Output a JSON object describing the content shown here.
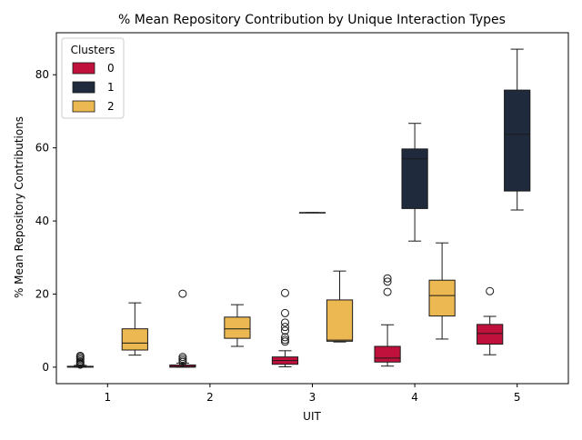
{
  "chart_data": {
    "type": "box",
    "title": "% Mean Repository Contribution by Unique Interaction Types",
    "xlabel": "UIT",
    "ylabel": "% Mean Repository Contributions",
    "categories": [
      "1",
      "2",
      "3",
      "4",
      "5"
    ],
    "ylim": [
      -4.5,
      91.5
    ],
    "yticks": [
      0,
      20,
      40,
      60,
      80
    ],
    "grid": false,
    "legend": {
      "title": "Clusters",
      "placement": "top-left"
    },
    "series": [
      {
        "name": "0",
        "color": "#c0113c",
        "boxes": [
          {
            "category": "1",
            "whislo": 0.0,
            "q1": 0.0,
            "med": 0.1,
            "q3": 0.25,
            "whishi": 0.5,
            "fliers": [
              0.7,
              1.0,
              1.3,
              1.6,
              2.0,
              2.4,
              2.8,
              3.1
            ]
          },
          {
            "category": "2",
            "whislo": 0.0,
            "q1": 0.0,
            "med": 0.2,
            "q3": 0.6,
            "whishi": 1.1,
            "fliers": [
              1.4,
              1.8,
              2.3,
              2.8,
              20.1
            ]
          },
          {
            "category": "3",
            "whislo": 0.1,
            "q1": 0.8,
            "med": 1.8,
            "q3": 2.8,
            "whishi": 4.5,
            "fliers": [
              7.0,
              7.5,
              8.2,
              10.0,
              11.0,
              12.2,
              14.8,
              20.3
            ]
          },
          {
            "category": "4",
            "whislo": 0.3,
            "q1": 1.4,
            "med": 2.5,
            "q3": 5.7,
            "whishi": 11.6,
            "fliers": [
              20.6,
              23.4,
              24.3
            ]
          },
          {
            "category": "5",
            "whislo": 3.4,
            "q1": 6.3,
            "med": 9.2,
            "q3": 11.7,
            "whishi": 13.9,
            "fliers": [
              20.8
            ]
          }
        ]
      },
      {
        "name": "1",
        "color": "#1f2a3c",
        "boxes": [
          {
            "category": "3",
            "whislo": 42.3,
            "q1": 42.3,
            "med": 42.3,
            "q3": 42.3,
            "whishi": 42.3,
            "fliers": []
          },
          {
            "category": "4",
            "whislo": 34.5,
            "q1": 43.4,
            "med": 57.0,
            "q3": 59.7,
            "whishi": 66.7,
            "fliers": []
          },
          {
            "category": "5",
            "whislo": 43.0,
            "q1": 48.2,
            "med": 63.7,
            "q3": 75.8,
            "whishi": 87.0,
            "fliers": []
          }
        ]
      },
      {
        "name": "2",
        "color": "#ecb851",
        "boxes": [
          {
            "category": "1",
            "whislo": 3.3,
            "q1": 4.7,
            "med": 6.6,
            "q3": 10.5,
            "whishi": 17.6,
            "fliers": []
          },
          {
            "category": "2",
            "whislo": 5.7,
            "q1": 7.9,
            "med": 10.5,
            "q3": 13.7,
            "whishi": 17.1,
            "fliers": []
          },
          {
            "category": "3",
            "whislo": 6.9,
            "q1": 7.1,
            "med": 7.4,
            "q3": 18.4,
            "whishi": 26.3,
            "fliers": []
          },
          {
            "category": "4",
            "whislo": 7.7,
            "q1": 14.0,
            "med": 19.6,
            "q3": 23.8,
            "whishi": 34.0,
            "fliers": []
          }
        ]
      }
    ]
  }
}
